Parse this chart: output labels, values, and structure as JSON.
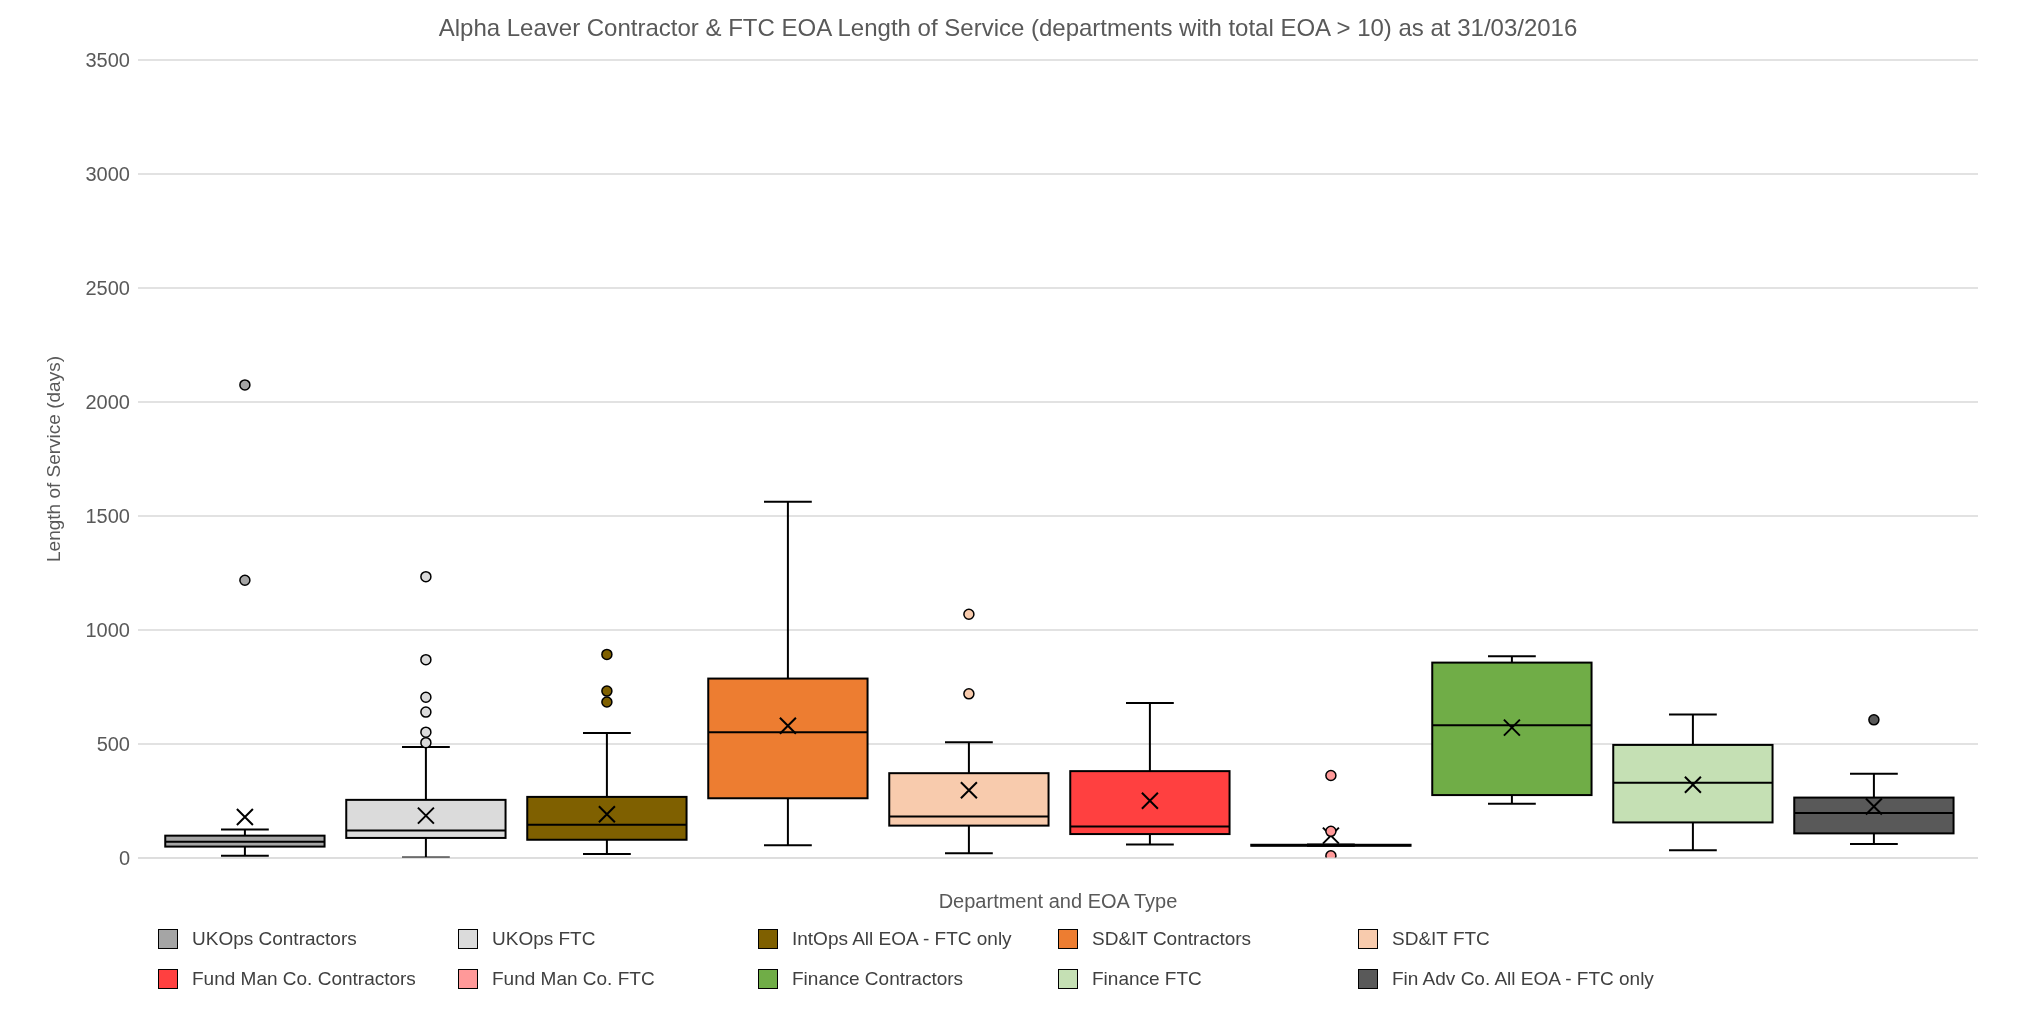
{
  "chart_data": {
    "type": "box",
    "title": "Alpha Leaver Contractor & FTC EOA Length of Service (departments with total EOA > 10) as at 31/03/2016",
    "xlabel": "Department and EOA Type",
    "ylabel": "Length of Service (days)",
    "categories": [
      null
    ],
    "ylim": [
      0,
      3500
    ],
    "yticks": [
      0,
      500,
      1000,
      1500,
      2000,
      2500,
      3000,
      3500
    ],
    "grid": "y",
    "legend": "bottom",
    "series": [
      {
        "name": "UKOps Contractors",
        "color": "#a5a5a5",
        "boxes": [
          {
            "low": 10,
            "q1": 50,
            "median": 71,
            "q3": 98,
            "high": 125,
            "mean": 180,
            "outliers": [
              1218,
              2075
            ]
          }
        ]
      },
      {
        "name": "UKOps FTC",
        "color": "#dbdbdb",
        "boxes": [
          {
            "low": 2,
            "q1": 88,
            "median": 121,
            "q3": 255,
            "high": 487,
            "mean": 186,
            "outliers": [
              506,
              552,
              640,
              705,
              870,
              1234
            ]
          }
        ]
      },
      {
        "name": "IntOps All EOA - FTC only",
        "color": "#7f6000",
        "boxes": [
          {
            "low": 17,
            "q1": 80,
            "median": 146,
            "q3": 268,
            "high": 548,
            "mean": 192,
            "outliers": [
              684,
              732,
              893
            ]
          }
        ]
      },
      {
        "name": "SD&IT Contractors",
        "color": "#ed7d31",
        "boxes": [
          {
            "low": 56,
            "q1": 262,
            "median": 552,
            "q3": 787,
            "high": 1563,
            "mean": 580
          }
        ]
      },
      {
        "name": "SD&IT FTC",
        "color": "#f8cbad",
        "boxes": [
          {
            "low": 21,
            "q1": 142,
            "median": 182,
            "q3": 372,
            "high": 508,
            "mean": 297,
            "outliers": [
              720,
              1069
            ]
          }
        ]
      },
      {
        "name": "Fund Man Co. Contractors",
        "color": "#ff4040",
        "boxes": [
          {
            "low": 59,
            "q1": 105,
            "median": 138,
            "q3": 381,
            "high": 680,
            "mean": 251
          }
        ]
      },
      {
        "name": "Fund Man Co. FTC",
        "color": "#ff9999",
        "boxes": [
          {
            "low": 54,
            "q1": 55,
            "median": 56,
            "q3": 58,
            "high": 59,
            "mean": 98,
            "outliers": [
              10,
              117,
              362
            ]
          }
        ]
      },
      {
        "name": "Finance Contractors",
        "color": "#70ad47",
        "boxes": [
          {
            "low": 238,
            "q1": 276,
            "median": 582,
            "q3": 857,
            "high": 885,
            "mean": 572
          }
        ]
      },
      {
        "name": "Finance FTC",
        "color": "#c5e0b4",
        "boxes": [
          {
            "low": 34,
            "q1": 156,
            "median": 330,
            "q3": 496,
            "high": 629,
            "mean": 321
          }
        ]
      },
      {
        "name": "Fin Adv Co. All EOA - FTC only",
        "color": "#595959",
        "boxes": [
          {
            "low": 61,
            "q1": 108,
            "median": 197,
            "q3": 265,
            "high": 369,
            "mean": 226,
            "outliers": [
              606
            ]
          }
        ]
      }
    ]
  }
}
